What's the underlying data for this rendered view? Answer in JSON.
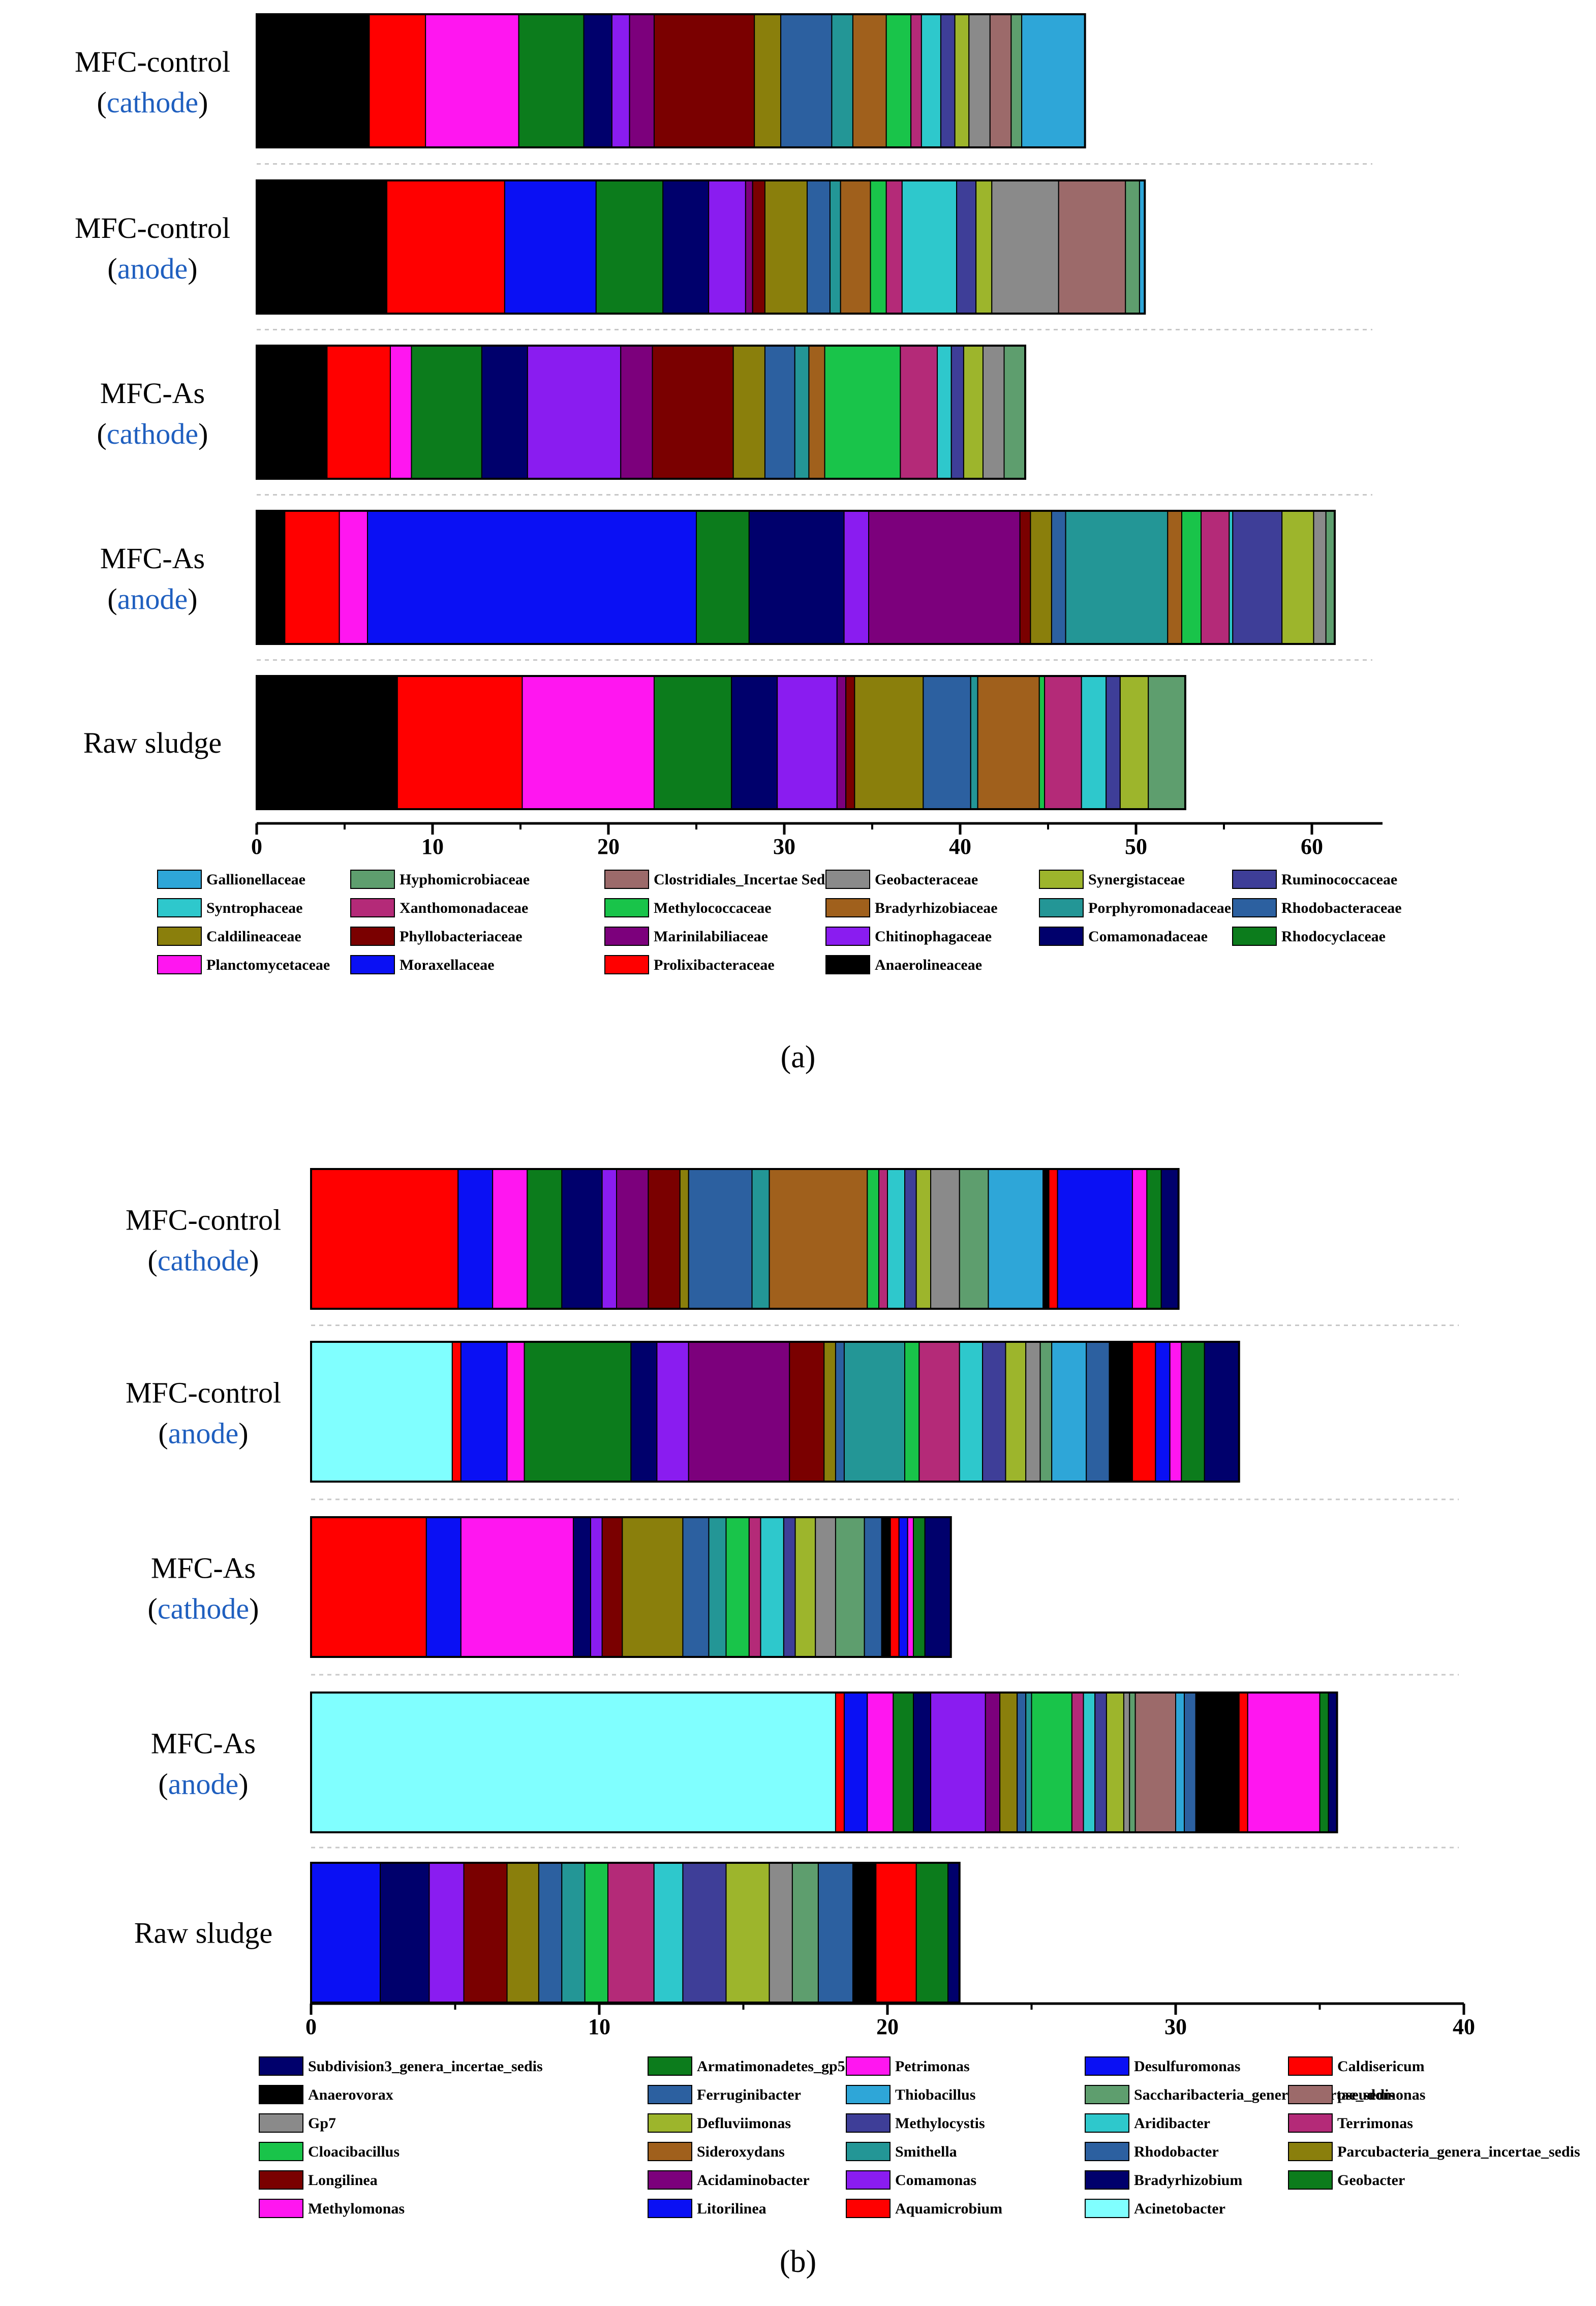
{
  "chart_data": [
    {
      "panel": "(a)",
      "type": "bar",
      "orientation": "horizontal",
      "stacked": true,
      "title": "",
      "xlabel": "",
      "ylabel": "",
      "xlim": [
        0,
        64
      ],
      "xticks": [
        0,
        10,
        20,
        30,
        40,
        50,
        60
      ],
      "categories": [
        {
          "line1": "MFC-control",
          "line2": "(cathode)"
        },
        {
          "line1": "MFC-control",
          "line2": "(anode)"
        },
        {
          "line1": "MFC-As",
          "line2": "(cathode)"
        },
        {
          "line1": "MFC-As",
          "line2": "(anode)"
        },
        {
          "line1": "Raw sludge",
          "line2": ""
        }
      ],
      "legend_columns": 6,
      "legend": [
        {
          "name": "Gallionellaceae",
          "color": "#2ea6d8"
        },
        {
          "name": "Hyphomicrobiaceae",
          "color": "#5e9e6e"
        },
        {
          "name": "Clostridiales_Incertae Sedis XII",
          "color": "#9c6a6a"
        },
        {
          "name": "Geobacteraceae",
          "color": "#8a8a8a"
        },
        {
          "name": "Synergistaceae",
          "color": "#9db52c"
        },
        {
          "name": "Ruminococcaceae",
          "color": "#3e3e98"
        },
        {
          "name": "Syntrophaceae",
          "color": "#2ec8cc"
        },
        {
          "name": "Xanthomonadaceae",
          "color": "#b42a78"
        },
        {
          "name": "Methylococcaceae",
          "color": "#19c44a"
        },
        {
          "name": "Bradyrhizobiaceae",
          "color": "#a0601c"
        },
        {
          "name": "Porphyromonadaceae",
          "color": "#239696"
        },
        {
          "name": "Rhodobacteraceae",
          "color": "#2c60a0"
        },
        {
          "name": "Caldilineaceae",
          "color": "#8a7f0c"
        },
        {
          "name": "Phyllobacteriaceae",
          "color": "#7a0000"
        },
        {
          "name": "Marinilabiliaceae",
          "color": "#7c007c"
        },
        {
          "name": "Chitinophagaceae",
          "color": "#8a1cf0"
        },
        {
          "name": "Comamonadaceae",
          "color": "#00006c"
        },
        {
          "name": "Rhodocyclaceae",
          "color": "#0c7c1c"
        },
        {
          "name": "Planctomycetaceae",
          "color": "#ff16f0"
        },
        {
          "name": "Moraxellaceae",
          "color": "#0a10f4"
        },
        {
          "name": "Prolixibacteraceae",
          "color": "#ff0000"
        },
        {
          "name": "Anaerolineaceae",
          "color": "#000000"
        }
      ],
      "series_order": [
        "Anaerolineaceae",
        "Prolixibacteraceae",
        "Planctomycetaceae",
        "Moraxellaceae",
        "Rhodocyclaceae",
        "Comamonadaceae",
        "Chitinophagaceae",
        "Marinilabiliaceae",
        "Phyllobacteriaceae",
        "Caldilineaceae",
        "Rhodobacteraceae",
        "Porphyromonadaceae",
        "Bradyrhizobiaceae",
        "Methylococcaceae",
        "Xanthomonadaceae",
        "Syntrophaceae",
        "Ruminococcaceae",
        "Synergistaceae",
        "Geobacteraceae",
        "Clostridiales_Incertae Sedis XII",
        "Hyphomicrobiaceae",
        "Gallionellaceae"
      ],
      "values": {
        "Anaerolineaceae": [
          6.4,
          7.4,
          4.0,
          1.6,
          8.0
        ],
        "Prolixibacteraceae": [
          3.2,
          6.7,
          3.6,
          3.1,
          7.1
        ],
        "Planctomycetaceae": [
          5.3,
          0.0,
          1.2,
          1.6,
          7.5
        ],
        "Moraxellaceae": [
          0.0,
          5.2,
          0.0,
          18.7,
          0.0
        ],
        "Rhodocyclaceae": [
          3.7,
          3.8,
          4.0,
          3.0,
          4.4
        ],
        "Comamonadaceae": [
          1.6,
          2.6,
          2.6,
          5.4,
          2.6
        ],
        "Chitinophagaceae": [
          1.0,
          2.1,
          5.3,
          1.4,
          3.4
        ],
        "Marinilabiliaceae": [
          1.4,
          0.4,
          1.8,
          8.6,
          0.5
        ],
        "Phyllobacteriaceae": [
          5.7,
          0.7,
          4.6,
          0.6,
          0.5
        ],
        "Caldilineaceae": [
          1.5,
          2.4,
          1.8,
          1.2,
          3.9
        ],
        "Rhodobacteraceae": [
          2.9,
          1.3,
          1.7,
          0.8,
          2.7
        ],
        "Porphyromonadaceae": [
          1.2,
          0.6,
          0.8,
          5.8,
          0.4
        ],
        "Bradyrhizobiaceae": [
          1.9,
          1.7,
          0.9,
          0.8,
          3.5
        ],
        "Methylococcaceae": [
          1.4,
          0.9,
          4.3,
          1.1,
          0.3
        ],
        "Xanthomonadaceae": [
          0.6,
          0.9,
          2.1,
          1.6,
          2.1
        ],
        "Syntrophaceae": [
          1.1,
          3.1,
          0.8,
          0.2,
          1.4
        ],
        "Ruminococcaceae": [
          0.8,
          1.1,
          0.7,
          2.8,
          0.8
        ],
        "Synergistaceae": [
          0.8,
          0.9,
          1.1,
          1.8,
          1.6
        ],
        "Geobacteraceae": [
          1.2,
          3.8,
          1.2,
          0.7,
          0.0
        ],
        "Clostridiales_Incertae Sedis XII": [
          1.2,
          3.8,
          0.0,
          0.0,
          0.0
        ],
        "Hyphomicrobiaceae": [
          0.6,
          0.8,
          1.2,
          0.5,
          2.1
        ],
        "Gallionellaceae": [
          3.6,
          0.3,
          0.0,
          0.0,
          0.0
        ]
      }
    },
    {
      "panel": "(b)",
      "type": "bar",
      "orientation": "horizontal",
      "stacked": true,
      "title": "",
      "xlabel": "",
      "ylabel": "",
      "xlim": [
        0,
        40
      ],
      "xticks": [
        0,
        10,
        20,
        30,
        40
      ],
      "categories": [
        {
          "line1": "MFC-control",
          "line2": "(cathode)"
        },
        {
          "line1": "MFC-control",
          "line2": "(anode)"
        },
        {
          "line1": "MFC-As",
          "line2": "(cathode)"
        },
        {
          "line1": "MFC-As",
          "line2": "(anode)"
        },
        {
          "line1": "Raw sludge",
          "line2": ""
        }
      ],
      "legend_columns": 5,
      "legend": [
        {
          "name": "Subdivision3_genera_incertae_sedis",
          "color": "#00006c"
        },
        {
          "name": "Armatimonadetes_gp5",
          "color": "#0c7c1c"
        },
        {
          "name": "Petrimonas",
          "color": "#ff16f0"
        },
        {
          "name": "Desulfuromonas",
          "color": "#0a10f4"
        },
        {
          "name": "Caldisericum",
          "color": "#ff0000"
        },
        {
          "name": "Anaerovorax",
          "color": "#000000"
        },
        {
          "name": "Ferruginibacter",
          "color": "#2c60a0"
        },
        {
          "name": "Thiobacillus",
          "color": "#2ea6d8"
        },
        {
          "name": "Saccharibacteria_genera_incertae_sedis",
          "color": "#5e9e6e"
        },
        {
          "name": "pseudomonas",
          "color": "#9c6a6a"
        },
        {
          "name": "Gp7",
          "color": "#8a8a8a"
        },
        {
          "name": "Defluviimonas",
          "color": "#9db52c"
        },
        {
          "name": "Methylocystis",
          "color": "#3e3e98"
        },
        {
          "name": "Aridibacter",
          "color": "#2ec8cc"
        },
        {
          "name": "Terrimonas",
          "color": "#b42a78"
        },
        {
          "name": "Cloacibacillus",
          "color": "#19c44a"
        },
        {
          "name": "Sideroxydans",
          "color": "#a0601c"
        },
        {
          "name": "Smithella",
          "color": "#239696"
        },
        {
          "name": "Rhodobacter",
          "color": "#2c60a0"
        },
        {
          "name": "Parcubacteria_genera_incertae_sedis",
          "color": "#8a7f0c"
        },
        {
          "name": "Longilinea",
          "color": "#7a0000"
        },
        {
          "name": "Acidaminobacter",
          "color": "#7c007c"
        },
        {
          "name": "Comamonas",
          "color": "#8a1cf0"
        },
        {
          "name": "Bradyrhizobium",
          "color": "#00006c"
        },
        {
          "name": "Geobacter",
          "color": "#0c7c1c"
        },
        {
          "name": "Methylomonas",
          "color": "#ff16f0"
        },
        {
          "name": "Litorilinea",
          "color": "#0a10f4"
        },
        {
          "name": "Aquamicrobium",
          "color": "#ff0000"
        },
        {
          "name": "Acinetobacter",
          "color": "#80ffff"
        }
      ],
      "series_order": [
        "Acinetobacter",
        "Aquamicrobium",
        "Litorilinea",
        "Methylomonas",
        "Geobacter",
        "Bradyrhizobium",
        "Comamonas",
        "Acidaminobacter",
        "Longilinea",
        "Parcubacteria_genera_incertae_sedis",
        "Rhodobacter",
        "Smithella",
        "Sideroxydans",
        "Cloacibacillus",
        "Terrimonas",
        "Aridibacter",
        "Methylocystis",
        "Defluviimonas",
        "Gp7",
        "Saccharibacteria_genera_incertae_sedis",
        "pseudomonas",
        "Thiobacillus",
        "Ferruginibacter",
        "Anaerovorax",
        "Caldisericum",
        "Desulfuromonas",
        "Petrimonas",
        "Armatimonadetes_gp5",
        "Subdivision3_genera_incertae_sedis"
      ],
      "values": {
        "Acinetobacter": [
          0.0,
          4.9,
          0.0,
          18.2,
          0.0
        ],
        "Aquamicrobium": [
          5.1,
          0.3,
          4.0,
          0.3,
          0.0
        ],
        "Litorilinea": [
          1.2,
          1.6,
          1.2,
          0.8,
          2.4
        ],
        "Methylomonas": [
          1.2,
          0.6,
          3.9,
          0.9,
          0.0
        ],
        "Geobacter": [
          1.2,
          3.7,
          0.0,
          0.7,
          0.0
        ],
        "Bradyrhizobium": [
          1.4,
          0.9,
          0.6,
          0.6,
          1.7
        ],
        "Comamonas": [
          0.5,
          1.1,
          0.4,
          1.9,
          1.2
        ],
        "Acidaminobacter": [
          1.1,
          3.5,
          0.0,
          0.5,
          0.0
        ],
        "Longilinea": [
          1.1,
          1.2,
          0.7,
          0.0,
          1.5
        ],
        "Parcubacteria_genera_incertae_sedis": [
          0.3,
          0.4,
          2.1,
          0.6,
          1.1
        ],
        "Rhodobacter": [
          2.2,
          0.3,
          0.9,
          0.3,
          0.8
        ],
        "Smithella": [
          0.6,
          2.1,
          0.6,
          0.2,
          0.8
        ],
        "Sideroxydans": [
          3.4,
          0.0,
          0.0,
          0.0,
          0.0
        ],
        "Cloacibacillus": [
          0.4,
          0.5,
          0.8,
          1.4,
          0.8
        ],
        "Terrimonas": [
          0.3,
          1.4,
          0.4,
          0.4,
          1.6
        ],
        "Aridibacter": [
          0.6,
          0.8,
          0.8,
          0.4,
          1.0
        ],
        "Methylocystis": [
          0.4,
          0.8,
          0.4,
          0.4,
          1.5
        ],
        "Defluviimonas": [
          0.5,
          0.7,
          0.7,
          0.6,
          1.5
        ],
        "Gp7": [
          1.0,
          0.5,
          0.7,
          0.2,
          0.8
        ],
        "Saccharibacteria_genera_incertae_sedis": [
          1.0,
          0.4,
          1.0,
          0.2,
          0.9
        ],
        "pseudomonas": [
          0.0,
          0.0,
          0.0,
          1.4,
          0.0
        ],
        "Thiobacillus": [
          1.9,
          1.2,
          0.0,
          0.3,
          0.0
        ],
        "Ferruginibacter": [
          0.0,
          0.8,
          0.6,
          0.4,
          1.2
        ],
        "Anaerovorax": [
          0.2,
          0.8,
          0.3,
          1.5,
          0.8
        ],
        "Caldisericum": [
          0.3,
          0.8,
          0.3,
          0.3,
          1.4
        ],
        "Desulfuromonas": [
          2.6,
          0.5,
          0.3,
          0.0,
          0.0
        ],
        "Petrimonas": [
          0.5,
          0.4,
          0.2,
          2.5,
          0.0
        ],
        "Armatimonadetes_gp5": [
          0.5,
          0.8,
          0.4,
          0.3,
          1.1
        ],
        "Subdivision3_genera_incertae_sedis": [
          0.6,
          1.2,
          0.9,
          0.3,
          0.4
        ]
      }
    }
  ]
}
